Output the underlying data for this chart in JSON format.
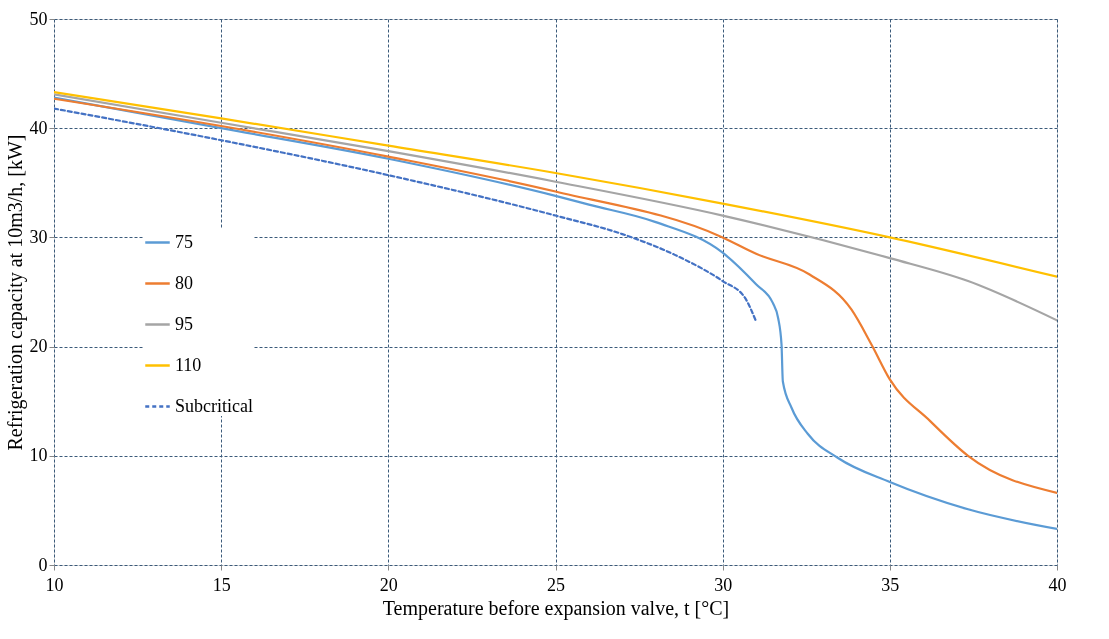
{
  "chart_data": {
    "type": "line",
    "xlabel": "Temperature before expansion valve, t [°C]",
    "ylabel": "Refrigeration capacity at 10m3/h, [kW]",
    "xlim": [
      10,
      40
    ],
    "ylim": [
      0,
      50
    ],
    "xticks": [
      10,
      15,
      20,
      25,
      30,
      35,
      40
    ],
    "yticks": [
      0,
      10,
      20,
      30,
      40,
      50
    ],
    "grid": true,
    "legend": "left",
    "marker": "none",
    "series": [
      {
        "name": "75",
        "color": "#5b9bd5",
        "line_style": "solid",
        "x": [
          10,
          15,
          20,
          25,
          26,
          28,
          30,
          31,
          31.5,
          31.66,
          31.76,
          31.8,
          32.06,
          32.55,
          33.45,
          35,
          37.34,
          40
        ],
        "values": [
          42.8,
          40.0,
          37.2,
          33.8,
          33.0,
          31.4,
          28.6,
          25.7,
          24.0,
          22.6,
          20.2,
          16.8,
          14.4,
          12.0,
          9.8,
          7.6,
          5.1,
          3.3
        ]
      },
      {
        "name": "80",
        "color": "#ed7d31",
        "line_style": "solid",
        "x": [
          10,
          15,
          20,
          25,
          30,
          31,
          32.6,
          33.85,
          34.45,
          35,
          36.2,
          37.34,
          40
        ],
        "values": [
          42.7,
          40.2,
          37.4,
          34.2,
          30.0,
          28.5,
          26.6,
          23.4,
          20.2,
          17.0,
          13.2,
          10.0,
          6.6
        ]
      },
      {
        "name": "95",
        "color": "#a5a5a5",
        "line_style": "solid",
        "x": [
          10,
          15,
          20,
          25,
          30,
          35,
          37.34,
          40
        ],
        "values": [
          43.1,
          40.5,
          37.9,
          35.1,
          32.0,
          28.1,
          26.0,
          22.4
        ]
      },
      {
        "name": "110",
        "color": "#ffc000",
        "line_style": "solid",
        "x": [
          10,
          15,
          20,
          25,
          30,
          35,
          40
        ],
        "values": [
          43.3,
          40.9,
          38.4,
          35.9,
          33.1,
          30.0,
          26.4
        ]
      },
      {
        "name": "Subcritical",
        "color": "#4472c4",
        "line_style": "dashed",
        "x": [
          10,
          15,
          20,
          25,
          27,
          28.57,
          30,
          30.66,
          31.0
        ],
        "values": [
          41.8,
          38.9,
          35.7,
          32.0,
          30.3,
          28.4,
          26.0,
          24.5,
          22.3
        ]
      }
    ]
  }
}
